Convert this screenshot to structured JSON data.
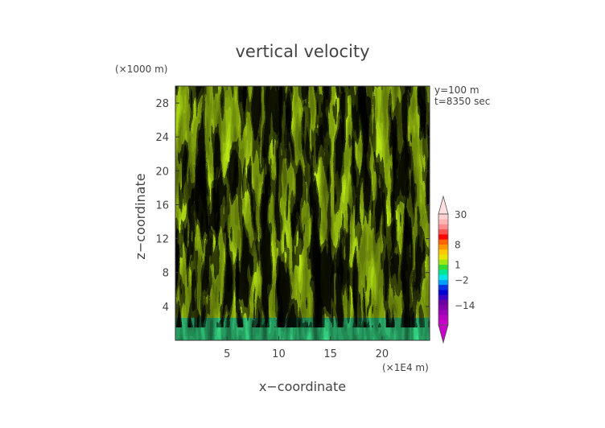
{
  "chart_data": {
    "type": "heatmap",
    "title": "vertical velocity",
    "xlabel": "x−coordinate",
    "ylabel": "z−coordinate",
    "x_unit": "(×1E4 m)",
    "y_unit": "(×1000 m)",
    "annotations": [
      "y=100  m",
      "t=8350  sec"
    ],
    "xlim": [
      0,
      24.6
    ],
    "ylim": [
      0,
      30
    ],
    "x_ticks": [
      5,
      10,
      15,
      20
    ],
    "y_ticks": [
      4,
      8,
      12,
      16,
      20,
      24,
      28
    ],
    "colorbar": {
      "levels": [
        -30,
        -26,
        -22,
        -18,
        -14,
        -11,
        -8,
        -6,
        -4,
        -2,
        -1,
        0,
        1,
        2,
        4,
        6,
        8,
        11,
        14,
        18,
        22,
        26,
        30
      ],
      "labels": [
        "30",
        "8",
        "1",
        "−2",
        "−14"
      ],
      "label_values": [
        30,
        8,
        1,
        -2,
        -14
      ],
      "colors": [
        "#c800c8",
        "#b400be",
        "#9b00b4",
        "#8200aa",
        "#6900a0",
        "#3c00c8",
        "#0000d2",
        "#0032e6",
        "#00a0ff",
        "#00e6e6",
        "#00e696",
        "#32dc32",
        "#a0e614",
        "#e6e600",
        "#ffc800",
        "#ff9600",
        "#ff6400",
        "#ff0000",
        "#ff5050",
        "#ff8c8c",
        "#ffb4b4",
        "#ffd2d2"
      ],
      "extend": "both"
    },
    "grid": false,
    "description": "vertical velocity field, strongly turbulent, organized in vertical plumes"
  }
}
